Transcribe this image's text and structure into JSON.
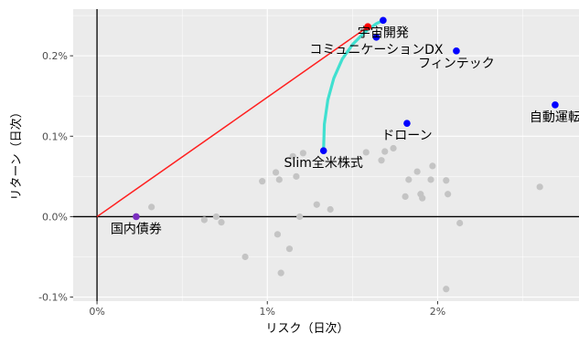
{
  "chart_data": {
    "type": "scatter",
    "xlabel": "リスク（日次）",
    "ylabel": "リターン（日次）",
    "xlim": [
      -0.0014,
      0.0283
    ],
    "ylim": [
      -0.00105,
      0.00258
    ],
    "x_ticks": [
      {
        "value": 0.0,
        "label": "0%"
      },
      {
        "value": 0.01,
        "label": "1%"
      },
      {
        "value": 0.02,
        "label": "2%"
      }
    ],
    "y_ticks": [
      {
        "value": -0.001,
        "label": "-0.1%"
      },
      {
        "value": 0.0,
        "label": "0.0%"
      },
      {
        "value": 0.001,
        "label": "0.1%"
      },
      {
        "value": 0.002,
        "label": "0.2%"
      }
    ],
    "colors": {
      "panel": "#ebebeb",
      "grid": "#ffffff",
      "background_points": "#c4c4c4",
      "highlight_points": "#0000ff",
      "bond_point": "#7a2fbf",
      "tangency_point": "#ff0000",
      "capital_market_line": "#ff2020",
      "efficient_frontier": "#40e0d0",
      "axis_lines": "#000000"
    },
    "capital_market_line": {
      "from": {
        "x": 0.0,
        "y": 0.0
      },
      "to": {
        "x": 0.0159,
        "y": 0.00236
      }
    },
    "efficient_frontier": [
      {
        "x": 0.0133,
        "y": 0.00082
      },
      {
        "x": 0.01335,
        "y": 0.00115
      },
      {
        "x": 0.01355,
        "y": 0.00145
      },
      {
        "x": 0.0139,
        "y": 0.00172
      },
      {
        "x": 0.0144,
        "y": 0.00196
      },
      {
        "x": 0.015,
        "y": 0.00214
      },
      {
        "x": 0.0157,
        "y": 0.00229
      },
      {
        "x": 0.0164,
        "y": 0.0024
      },
      {
        "x": 0.0168,
        "y": 0.00244
      }
    ],
    "labeled_points": [
      {
        "name": "宇宙開発",
        "x": 0.0168,
        "y": 0.00244,
        "color": "blue"
      },
      {
        "name": "コミュニケーションDX",
        "x": 0.0164,
        "y": 0.00223,
        "color": "blue"
      },
      {
        "name": "フィンテック",
        "x": 0.0211,
        "y": 0.00206,
        "color": "blue"
      },
      {
        "name": "自動運転",
        "x": 0.0269,
        "y": 0.00139,
        "color": "blue"
      },
      {
        "name": "ドローン",
        "x": 0.0182,
        "y": 0.00116,
        "color": "blue"
      },
      {
        "name": "Slim全米株式",
        "x": 0.0133,
        "y": 0.00082,
        "color": "blue"
      },
      {
        "name": "国内債券",
        "x": 0.0023,
        "y": 0.0,
        "color": "purple"
      }
    ],
    "tangency_point": {
      "x": 0.0159,
      "y": 0.00236
    },
    "other_points": [
      {
        "x": 0.0032,
        "y": 0.00012
      },
      {
        "x": 0.0063,
        "y": -4e-05
      },
      {
        "x": 0.007,
        "y": 0.0
      },
      {
        "x": 0.0073,
        "y": -7e-05
      },
      {
        "x": 0.0087,
        "y": -0.0005
      },
      {
        "x": 0.0097,
        "y": 0.00044
      },
      {
        "x": 0.0105,
        "y": 0.00055
      },
      {
        "x": 0.0106,
        "y": -0.00022
      },
      {
        "x": 0.0107,
        "y": 0.00046
      },
      {
        "x": 0.0108,
        "y": -0.0007
      },
      {
        "x": 0.0113,
        "y": -0.0004
      },
      {
        "x": 0.0115,
        "y": 0.00075
      },
      {
        "x": 0.0117,
        "y": 0.0005
      },
      {
        "x": 0.0119,
        "y": 0.0
      },
      {
        "x": 0.0121,
        "y": 0.00079
      },
      {
        "x": 0.0129,
        "y": 0.00015
      },
      {
        "x": 0.0137,
        "y": 9e-05
      },
      {
        "x": 0.0158,
        "y": 0.0008
      },
      {
        "x": 0.0167,
        "y": 0.0007
      },
      {
        "x": 0.0169,
        "y": 0.00081
      },
      {
        "x": 0.0174,
        "y": 0.00085
      },
      {
        "x": 0.0181,
        "y": 0.00025
      },
      {
        "x": 0.0183,
        "y": 0.00046
      },
      {
        "x": 0.0188,
        "y": 0.00056
      },
      {
        "x": 0.019,
        "y": 0.00028
      },
      {
        "x": 0.0191,
        "y": 0.00023
      },
      {
        "x": 0.0196,
        "y": 0.00046
      },
      {
        "x": 0.0197,
        "y": 0.00063
      },
      {
        "x": 0.0205,
        "y": 0.00045
      },
      {
        "x": 0.0206,
        "y": 0.00028
      },
      {
        "x": 0.0205,
        "y": -0.0009
      },
      {
        "x": 0.0213,
        "y": -8e-05
      },
      {
        "x": 0.026,
        "y": 0.00037
      }
    ]
  }
}
